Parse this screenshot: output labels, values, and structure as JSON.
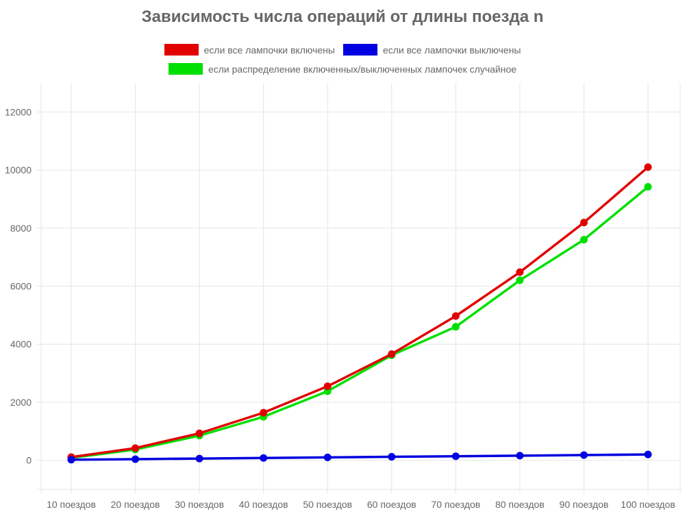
{
  "chart_data": {
    "type": "line",
    "title": "Зависимость числа операций от длины поезда n",
    "xlabel": "",
    "ylabel": "",
    "categories": [
      "10 поездов",
      "20 поездов",
      "30 поездов",
      "40 поездов",
      "50 поездов",
      "60 поездов",
      "70 поездов",
      "80 поездов",
      "90 поездов",
      "100 поездов"
    ],
    "ylim": [
      -1000,
      13000
    ],
    "yticks": [
      0,
      2000,
      4000,
      6000,
      8000,
      10000,
      12000
    ],
    "grid": true,
    "legend_position": "top",
    "series": [
      {
        "name": "если все лампочки включены",
        "color": "#e00000",
        "values": [
          110,
          420,
          930,
          1640,
          2550,
          3660,
          4970,
          6480,
          8190,
          10100
        ]
      },
      {
        "name": "если все лампочки выключены",
        "color": "#0000e0",
        "values": [
          20,
          40,
          60,
          80,
          100,
          120,
          140,
          160,
          180,
          200
        ]
      },
      {
        "name": "если распределение включенных/выключенных лампочек случайное",
        "color": "#00e000",
        "values": [
          85,
          370,
          850,
          1500,
          2380,
          3620,
          4600,
          6200,
          7600,
          9420
        ]
      }
    ]
  }
}
